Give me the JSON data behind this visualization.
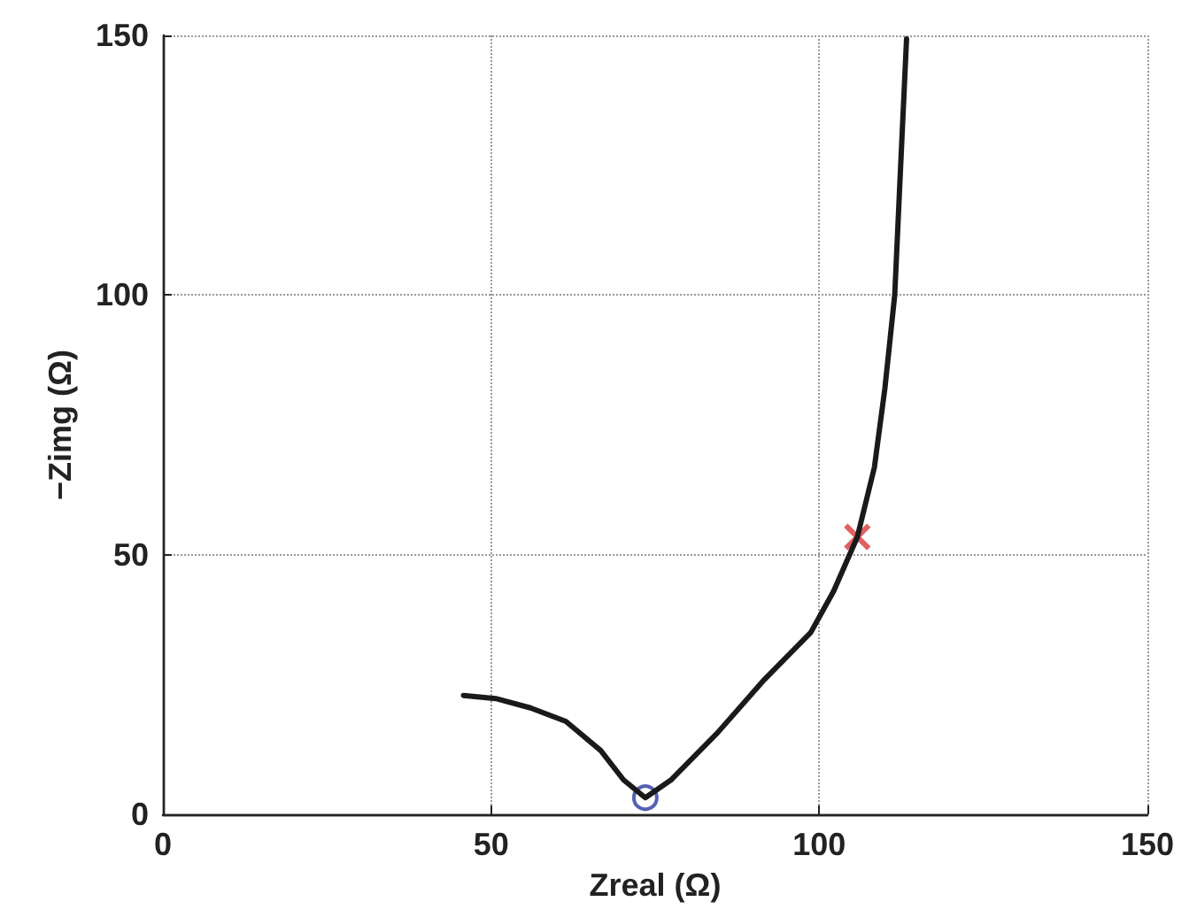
{
  "chart_data": {
    "type": "line",
    "xlabel": "Zreal (Ω)",
    "ylabel": "−Zimg (Ω)",
    "xlim": [
      0,
      150
    ],
    "xticks": [
      0,
      50,
      100,
      150
    ],
    "ylim": [
      0,
      150
    ],
    "yticks": [
      0,
      50,
      100,
      150
    ],
    "grid": true,
    "series": [
      {
        "type": "line",
        "color": "#1a1a1a",
        "marker": "none",
        "line_style": "solid",
        "x": [
          45.8,
          50.7,
          56,
          61.4,
          66.7,
          70.2,
          73.5,
          77.4,
          84.5,
          91.6,
          98.7,
          102.2,
          105.8,
          108.4,
          110,
          111.5,
          112.4,
          113.3
        ],
        "values": [
          22.9,
          22.3,
          20.5,
          17.9,
          12.3,
          6.6,
          3.2,
          6.6,
          15.7,
          25.9,
          35,
          43,
          53.4,
          66.8,
          82,
          100,
          124.8,
          149.3
        ]
      },
      {
        "type": "scatter",
        "color": "#2b3a9c",
        "marker": "circle",
        "x": [
          73.5
        ],
        "values": [
          3.2
        ]
      },
      {
        "type": "scatter",
        "color": "#d9383a",
        "marker": "cross",
        "x": [
          105.8
        ],
        "values": [
          53.4
        ]
      }
    ]
  }
}
